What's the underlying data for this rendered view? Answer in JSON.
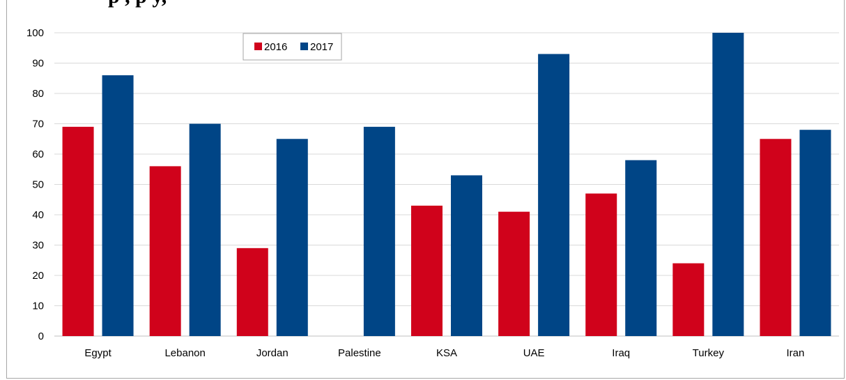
{
  "header": {
    "title_fragment": "p                    ,                          p                   y,"
  },
  "chart_data": {
    "type": "bar",
    "title": "",
    "xlabel": "",
    "ylabel": "",
    "categories": [
      "Egypt",
      "Lebanon",
      "Jordan",
      "Palestine",
      "KSA",
      "UAE",
      "Iraq",
      "Turkey",
      "Iran"
    ],
    "series": [
      {
        "name": "2016",
        "color": "#d0021b",
        "values": [
          69,
          56,
          29,
          null,
          43,
          41,
          47,
          24,
          65
        ]
      },
      {
        "name": "2017",
        "color": "#004586",
        "values": [
          86,
          70,
          65,
          69,
          53,
          93,
          58,
          100,
          68
        ]
      }
    ],
    "ylim": [
      0,
      100
    ],
    "yticks": [
      0,
      10,
      20,
      30,
      40,
      50,
      60,
      70,
      80,
      90,
      100
    ],
    "grid": true,
    "legend": "top-left"
  }
}
